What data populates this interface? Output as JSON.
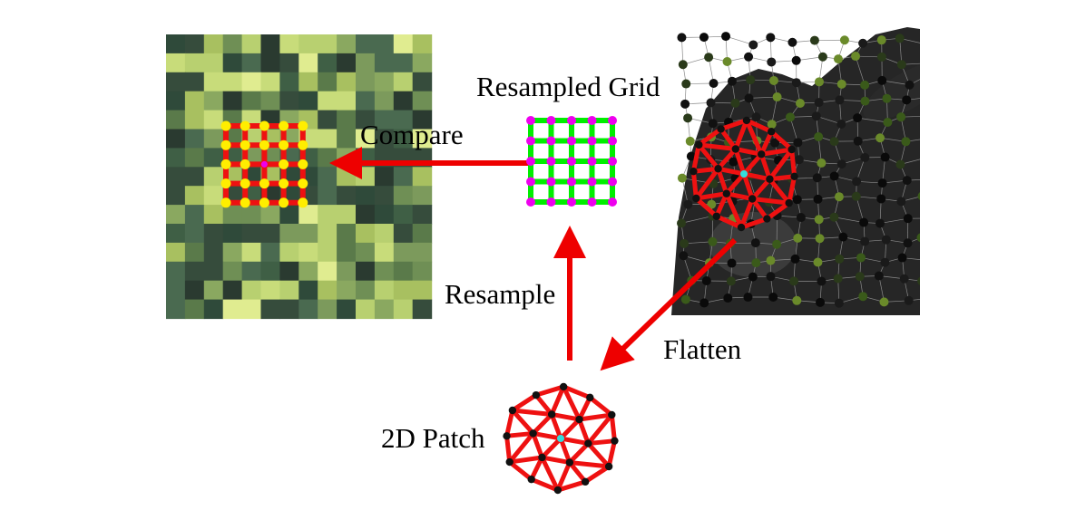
{
  "labels": {
    "resampled_grid": "Resampled Grid",
    "compare": "Compare",
    "resample": "Resample",
    "flatten": "Flatten",
    "patch_2d": "2D Patch"
  },
  "colors": {
    "arrow": "#ee0000",
    "mesh_edge": "#ee1111",
    "grid_line_resampled": "#00ee00",
    "grid_node_resampled": "#ee00ee",
    "grid_node_texture": "#ffee00",
    "center_vertex": "#33dddd",
    "vertex": "#111111"
  }
}
